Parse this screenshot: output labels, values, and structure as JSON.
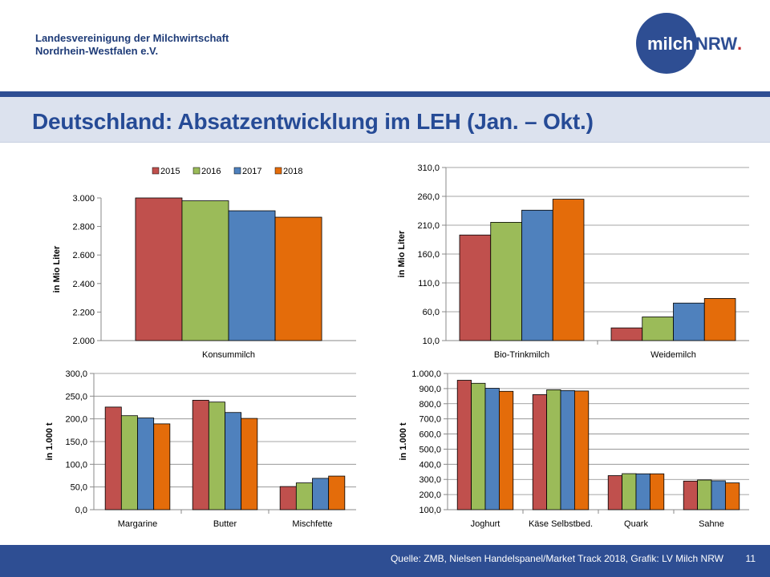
{
  "header": {
    "org_line1": "Landesvereinigung der Milchwirtschaft",
    "org_line2": "Nordrhein-Westfalen e.V.",
    "logo_text_milch": "milch",
    "logo_text_nrw": "NRW",
    "logo_dot": "."
  },
  "title": "Deutschland: Absatzentwicklung im LEH (Jan. – Okt.)",
  "footer": {
    "source": "Quelle: ZMB, Nielsen Handelspanel/Market Track 2018, Grafik: LV Milch NRW",
    "page": "11"
  },
  "colors": {
    "2015": "#c0504d",
    "2016": "#9bbb59",
    "2017": "#4f81bd",
    "2018": "#e46c0a",
    "brand_blue": "#2e4e93",
    "title_blue": "#264b96"
  },
  "chart_data": [
    {
      "type": "bar",
      "categories": [
        "Konsummilch"
      ],
      "series": [
        {
          "name": "2015",
          "values": [
            3030
          ]
        },
        {
          "name": "2016",
          "values": [
            2980
          ]
        },
        {
          "name": "2017",
          "values": [
            2910
          ]
        },
        {
          "name": "2018",
          "values": [
            2865
          ]
        }
      ],
      "ylabel": "in Mio Liter",
      "ylim": [
        2000,
        3000
      ],
      "yticks": [
        "2.000",
        "2.200",
        "2.400",
        "2.600",
        "2.800",
        "3.000"
      ],
      "legend": "top",
      "grid": false
    },
    {
      "type": "bar",
      "categories": [
        "Bio-Trinkmilch",
        "Weidemilch"
      ],
      "series": [
        {
          "name": "2015",
          "values": [
            193,
            32
          ]
        },
        {
          "name": "2016",
          "values": [
            215,
            51
          ]
        },
        {
          "name": "2017",
          "values": [
            236,
            75
          ]
        },
        {
          "name": "2018",
          "values": [
            255,
            83
          ]
        }
      ],
      "ylabel": "in Mio Liter",
      "ylim": [
        10,
        310
      ],
      "yticks": [
        "10,0",
        "60,0",
        "110,0",
        "160,0",
        "210,0",
        "260,0",
        "310,0"
      ],
      "grid": true
    },
    {
      "type": "bar",
      "categories": [
        "Margarine",
        "Butter",
        "Mischfette"
      ],
      "series": [
        {
          "name": "2015",
          "values": [
            226,
            241,
            51
          ]
        },
        {
          "name": "2016",
          "values": [
            207,
            237,
            59
          ]
        },
        {
          "name": "2017",
          "values": [
            202,
            214,
            69
          ]
        },
        {
          "name": "2018",
          "values": [
            189,
            201,
            74
          ]
        }
      ],
      "ylabel": "in 1.000 t",
      "ylim": [
        0,
        300
      ],
      "yticks": [
        "0,0",
        "50,0",
        "100,0",
        "150,0",
        "200,0",
        "250,0",
        "300,0"
      ],
      "grid": true
    },
    {
      "type": "bar",
      "categories": [
        "Joghurt",
        "Käse Selbstbed.",
        "Quark",
        "Sahne"
      ],
      "series": [
        {
          "name": "2015",
          "values": [
            955,
            860,
            325,
            289
          ]
        },
        {
          "name": "2016",
          "values": [
            935,
            892,
            338,
            296
          ]
        },
        {
          "name": "2017",
          "values": [
            902,
            887,
            337,
            291
          ]
        },
        {
          "name": "2018",
          "values": [
            882,
            884,
            337,
            277
          ]
        }
      ],
      "ylabel": "in 1.000 t",
      "ylim": [
        100,
        1000
      ],
      "yticks": [
        "100,0",
        "200,0",
        "300,0",
        "400,0",
        "500,0",
        "600,0",
        "700,0",
        "800,0",
        "900,0",
        "1.000,0"
      ],
      "grid": true
    }
  ]
}
